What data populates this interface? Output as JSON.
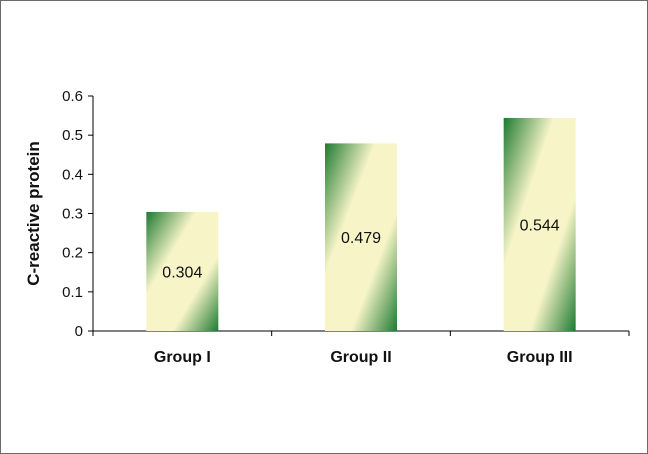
{
  "chart_data": {
    "type": "bar",
    "categories": [
      "Group I",
      "Group II",
      "Group III"
    ],
    "values": [
      0.304,
      0.479,
      0.544
    ],
    "data_labels": [
      "0.304",
      "0.479",
      "0.544"
    ],
    "title": "",
    "xlabel": "",
    "ylabel": "C-reactive protein",
    "ylim": [
      0,
      0.6
    ],
    "yticks": [
      0,
      0.1,
      0.2,
      0.3,
      0.4,
      0.5,
      0.6
    ],
    "ytick_labels": [
      "0",
      "0.1",
      "0.2",
      "0.3",
      "0.4",
      "0.5",
      "0.6"
    ],
    "grid": false,
    "legend": "none",
    "colors": {
      "bar_dark": "#1e7a32",
      "bar_light": "#f7f5c8",
      "axis": "#000000"
    }
  }
}
